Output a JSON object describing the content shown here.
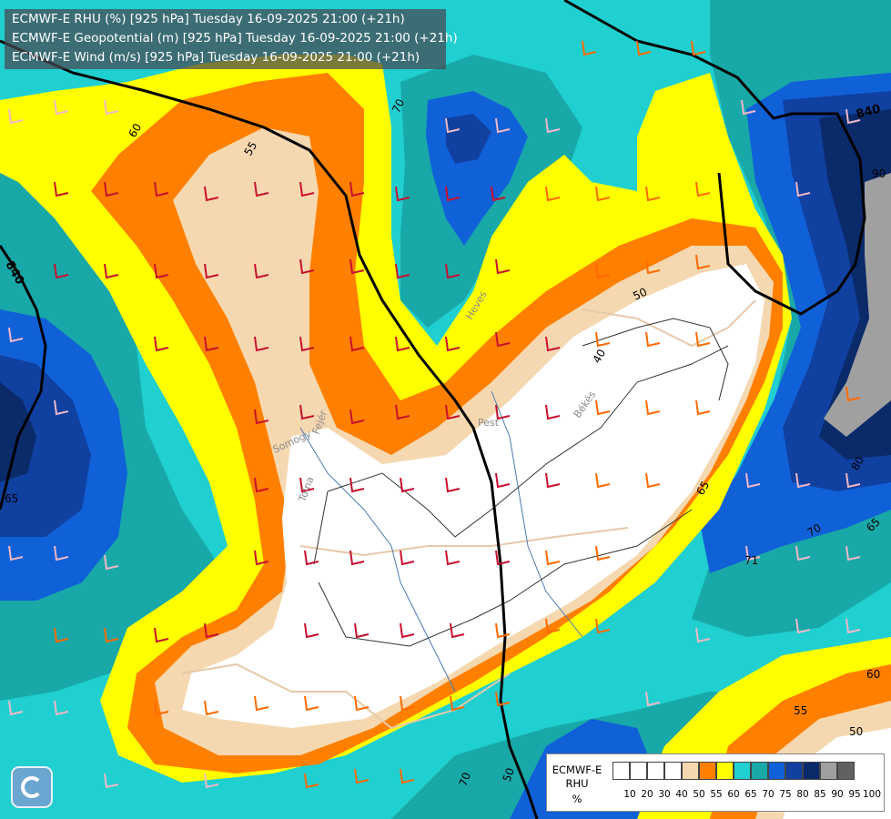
{
  "header": {
    "rhu_line": "ECMWF-E RHU (%) [925 hPa] Tuesday 16-09-2025 21:00 (+21h)",
    "geo_line": "ECMWF-E Geopotential (m) [925 hPa] Tuesday 16-09-2025 21:00 (+21h)",
    "wind_line": "ECMWF-E Wind (m/s) [925 hPa] Tuesday 16-09-2025 21:00 (+21h)"
  },
  "map_labels": {
    "place_pest": "Pest",
    "place_bekes": "Békés",
    "place_heves": "Heves",
    "place_tolna": "Tolna",
    "place_somogy": "Somogy",
    "place_fejer": "Fejér",
    "geo_840_top": "840",
    "geo_840_left": "840",
    "c_60_nw": "60",
    "c_55_nw": "55",
    "c_70_n": "70",
    "c_50_center": "50",
    "c_40_center": "40",
    "c_65_e": "65",
    "c_70_e": "70",
    "c_80_e": "80",
    "c_90_e": "90",
    "c_65_far_e": "65",
    "c_71_e": "71",
    "c_60_se": "60",
    "c_55_se": "55",
    "c_50_se": "50",
    "c_70_s": "70",
    "c_50_s": "50",
    "c_65_w": "65"
  },
  "legend": {
    "title1": "ECMWF-E",
    "title2": "RHU",
    "unit": "%",
    "ticks": [
      "10",
      "20",
      "30",
      "40",
      "50",
      "55",
      "60",
      "65",
      "70",
      "75",
      "80",
      "85",
      "90",
      "95",
      "100"
    ],
    "colors": [
      "#ffffff",
      "#ffffff",
      "#ffffff",
      "#ffffff",
      "#f5d8b0",
      "#ff8000",
      "#ffff00",
      "#20cfd0",
      "#18a8a8",
      "#1060d8",
      "#1040a0",
      "#0a2a6a",
      "#a0a0a0",
      "#606060"
    ]
  },
  "colors": {
    "white": "#ffffff",
    "tan": "#f5d8b0",
    "orange": "#ff8000",
    "yellow": "#ffff00",
    "cyan": "#20cfd0",
    "teal": "#18a8a8",
    "blue": "#1060d8",
    "darkblue": "#1040a0",
    "navy": "#0a2a6a",
    "grey": "#a0a0a0"
  }
}
